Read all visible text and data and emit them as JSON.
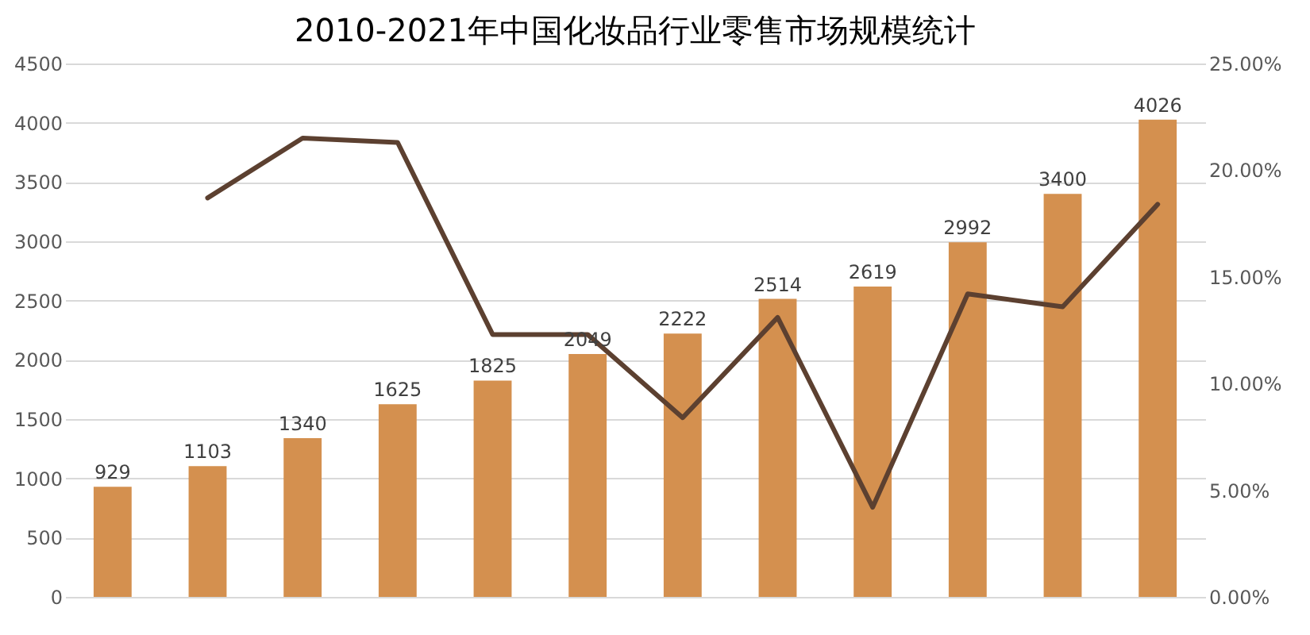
{
  "chart_data": {
    "type": "bar",
    "title": "2010-2021年中国化妆品行业零售市场规模统计",
    "categories": [
      null,
      null,
      null,
      null,
      null,
      null,
      null,
      null,
      null,
      null,
      null,
      null
    ],
    "series": [
      {
        "color": "#d4904f",
        "values": [
          929,
          1103,
          1340,
          1625,
          1825,
          2049,
          2222,
          2514,
          2619,
          2992,
          3400,
          4026
        ],
        "value_labels": [
          "929",
          "1103",
          "1340",
          "1625",
          "1825",
          "2049",
          "2222",
          "2514",
          "2619",
          "2992",
          "3400",
          "4026"
        ]
      },
      {
        "type": "line",
        "axis": "y2",
        "color": "#5c4030",
        "values": [
          null,
          18.7,
          21.5,
          21.3,
          12.3,
          12.3,
          8.4,
          13.1,
          4.2,
          14.2,
          13.6,
          18.4
        ]
      }
    ],
    "ylim": [
      0,
      4500
    ],
    "yticks": [
      0,
      500,
      1000,
      1500,
      2000,
      2500,
      3000,
      3500,
      4000,
      4500
    ],
    "y2lim": [
      0,
      25
    ],
    "y2ticks": [
      {
        "value": 0,
        "label": "0.00%"
      },
      {
        "value": 5,
        "label": "5.00%"
      },
      {
        "value": 10,
        "label": "10.00%"
      },
      {
        "value": 15,
        "label": "15.00%"
      },
      {
        "value": 20,
        "label": "20.00%"
      },
      {
        "value": 25,
        "label": "25.00%"
      }
    ],
    "grid": "y"
  }
}
